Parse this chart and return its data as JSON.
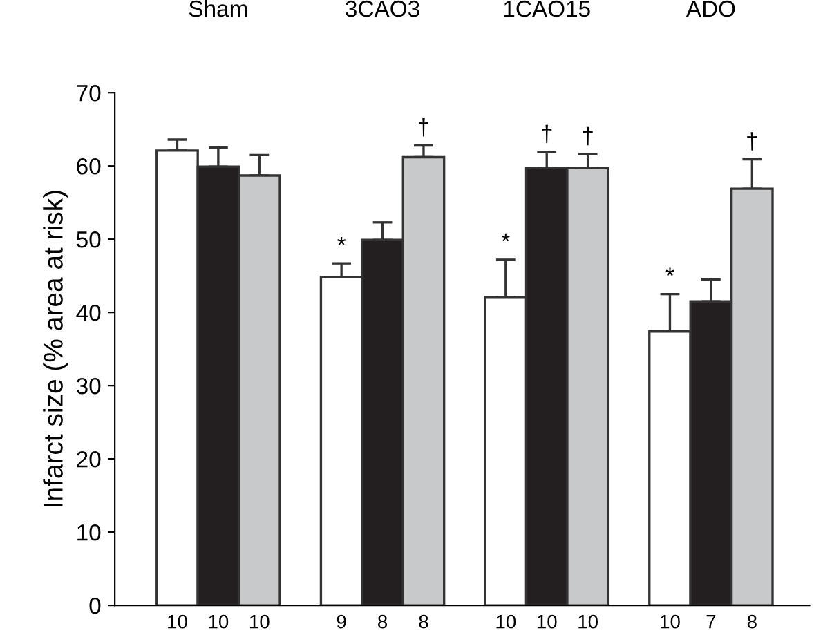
{
  "chart_data": {
    "type": "bar",
    "ylabel": "Infarct size (% area at risk)",
    "categories": [
      "Sham",
      "3CAO3",
      "1CAO15",
      "ADO"
    ],
    "series": [
      {
        "color": "#ffffff",
        "values": [
          62.1,
          44.8,
          42.1,
          37.4
        ],
        "errors": [
          [
            62.1,
            63.6
          ],
          [
            44.8,
            46.7
          ],
          [
            42.1,
            47.2
          ],
          [
            37.4,
            42.5
          ]
        ]
      },
      {
        "color": "#231f20",
        "values": [
          59.9,
          49.9,
          59.7,
          41.5
        ],
        "errors": [
          [
            59.9,
            62.5
          ],
          [
            49.9,
            52.3
          ],
          [
            59.7,
            61.9
          ],
          [
            41.5,
            44.5
          ]
        ]
      },
      {
        "color": "#c8c9cb",
        "values": [
          58.7,
          61.2,
          59.7,
          56.9
        ],
        "errors": [
          [
            58.7,
            61.5
          ],
          [
            61.2,
            62.8
          ],
          [
            59.7,
            61.6
          ],
          [
            56.9,
            60.9
          ]
        ]
      }
    ],
    "ylim": [
      0,
      70
    ],
    "yticks": [
      0,
      10,
      20,
      30,
      40,
      50,
      60,
      70
    ],
    "grid": false,
    "legend": false,
    "annotations": [
      "10",
      "10",
      "10",
      "9",
      "8",
      "8",
      "10",
      "10",
      "10",
      "10",
      "7",
      "8",
      "*",
      "†",
      "*",
      "†",
      "†",
      "*",
      "†"
    ]
  }
}
